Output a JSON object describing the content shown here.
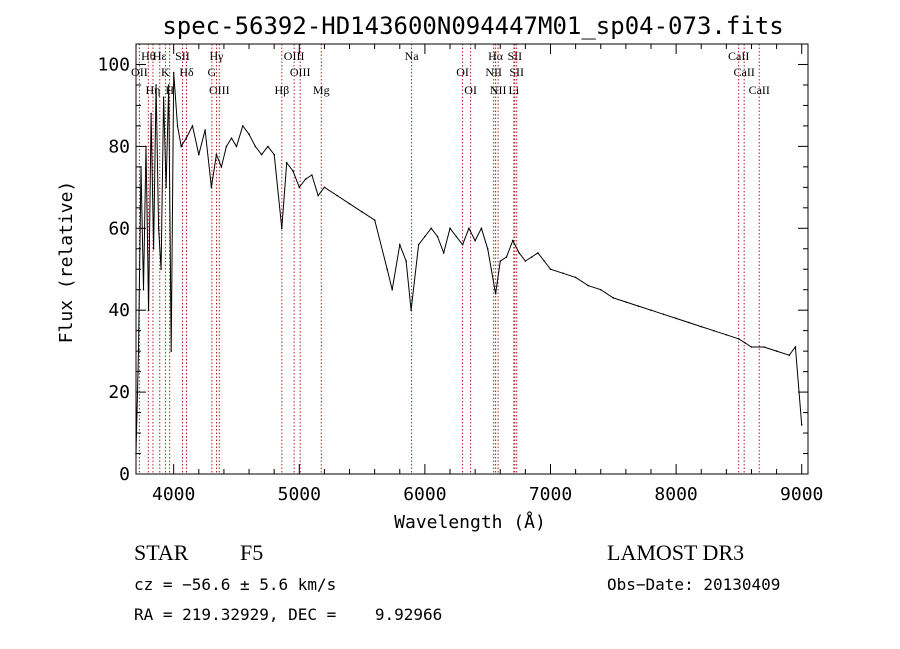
{
  "chart_data": {
    "type": "line",
    "title": "spec-56392-HD143600N094447M01_sp04-073.fits",
    "xlabel": "Wavelength (Å)",
    "ylabel": "Flux (relative)",
    "xlim": [
      3700,
      9050
    ],
    "ylim": [
      0,
      105
    ],
    "x_ticks": [
      4000,
      5000,
      6000,
      7000,
      8000,
      9000
    ],
    "y_ticks": [
      0,
      20,
      40,
      60,
      80,
      100
    ],
    "grid": false,
    "line_color": "#000000",
    "marker_color": "#b22222",
    "series": [
      {
        "x": [
          3700,
          3720,
          3740,
          3760,
          3780,
          3800,
          3820,
          3840,
          3860,
          3880,
          3900,
          3920,
          3940,
          3960,
          3980,
          4000,
          4030,
          4060,
          4100,
          4150,
          4200,
          4250,
          4300,
          4340,
          4380,
          4420,
          4460,
          4500,
          4550,
          4600,
          4650,
          4700,
          4750,
          4800,
          4861,
          4900,
          4950,
          5000,
          5050,
          5100,
          5150,
          5200,
          5300,
          5400,
          5500,
          5600,
          5700,
          5740,
          5800,
          5850,
          5890,
          5950,
          6000,
          6050,
          6100,
          6150,
          6200,
          6250,
          6300,
          6350,
          6400,
          6450,
          6500,
          6563,
          6600,
          6650,
          6700,
          6750,
          6800,
          6850,
          6900,
          6950,
          7000,
          7100,
          7200,
          7300,
          7400,
          7500,
          7600,
          7700,
          7800,
          7900,
          8000,
          8100,
          8200,
          8300,
          8400,
          8500,
          8550,
          8600,
          8700,
          8800,
          8900,
          8950,
          9000
        ],
        "y": [
          5,
          30,
          75,
          45,
          80,
          40,
          88,
          55,
          95,
          60,
          50,
          92,
          70,
          95,
          30,
          98,
          85,
          80,
          82,
          85,
          78,
          84,
          70,
          78,
          75,
          80,
          82,
          80,
          85,
          83,
          80,
          78,
          80,
          78,
          60,
          76,
          74,
          70,
          72,
          73,
          68,
          70,
          68,
          66,
          64,
          62,
          50,
          45,
          56,
          52,
          40,
          56,
          58,
          60,
          58,
          54,
          60,
          58,
          56,
          60,
          57,
          60,
          55,
          44,
          52,
          53,
          57,
          54,
          52,
          53,
          54,
          52,
          50,
          49,
          48,
          46,
          45,
          43,
          42,
          41,
          40,
          39,
          38,
          37,
          36,
          35,
          34,
          33,
          32,
          31,
          31,
          30,
          29,
          31,
          12
        ]
      }
    ],
    "annotations": [
      {
        "label": "Hθ",
        "x": 3798
      },
      {
        "label": "OII",
        "x": 3727
      },
      {
        "label": "Hη",
        "x": 3835
      },
      {
        "label": "Hε",
        "x": 3889
      },
      {
        "label": "K",
        "x": 3934
      },
      {
        "label": "H",
        "x": 3968
      },
      {
        "label": "SII",
        "x": 4070
      },
      {
        "label": "Hδ",
        "x": 4102
      },
      {
        "label": "OIII",
        "x": 4363
      },
      {
        "label": "Hγ",
        "x": 4341
      },
      {
        "label": "G",
        "x": 4304
      },
      {
        "label": "Hβ",
        "x": 4861
      },
      {
        "label": "OIII",
        "x": 4959
      },
      {
        "label": "OIII",
        "x": 5007
      },
      {
        "label": "Mg",
        "x": 5175
      },
      {
        "label": "Na",
        "x": 5894
      },
      {
        "label": "OI",
        "x": 6300
      },
      {
        "label": "OI",
        "x": 6364
      },
      {
        "label": "Hα",
        "x": 6563
      },
      {
        "label": "NII",
        "x": 6548
      },
      {
        "label": "NII",
        "x": 6583
      },
      {
        "label": "SII",
        "x": 6716
      },
      {
        "label": "SII",
        "x": 6731
      },
      {
        "label": "Li",
        "x": 6708
      },
      {
        "label": "CaII",
        "x": 8498
      },
      {
        "label": "CaII",
        "x": 8542
      },
      {
        "label": "CaII",
        "x": 8662
      }
    ]
  },
  "info": {
    "object_class": "STAR",
    "subclass": "F5",
    "survey": "LAMOST DR3",
    "redshift": "cz = −56.6 ± 5.6 km/s",
    "obs_date": "Obs−Date: 20130409",
    "coords": "RA = 219.32929, DEC =    9.92966"
  }
}
